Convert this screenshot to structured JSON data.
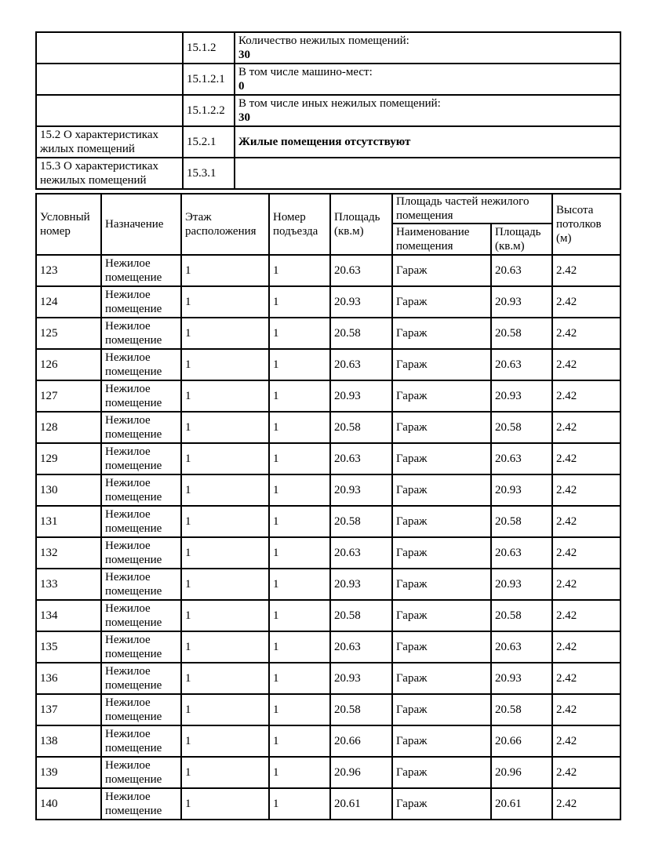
{
  "colors": {
    "background": "#ffffff",
    "border": "#000000",
    "text": "#000000"
  },
  "info_table": {
    "rows": [
      {
        "label": "",
        "code": "15.1.2",
        "text": "Количество нежилых помещений:",
        "value": "30"
      },
      {
        "label": "",
        "code": "15.1.2.1",
        "text": "В том числе машино-мест:",
        "value": "0"
      },
      {
        "label": "",
        "code": "15.1.2.2",
        "text": "В том числе иных нежилых помещений:",
        "value": "30"
      },
      {
        "label": "15.2 О характеристиках жилых помещений",
        "code": "15.2.1",
        "text": "",
        "value": "Жилые помещения отсутствуют"
      },
      {
        "label": "15.3 О характеристиках нежилых помещений",
        "code": "15.3.1",
        "text": "",
        "value": ""
      }
    ]
  },
  "premises_table": {
    "headers": {
      "unit_number": "Условный номер",
      "purpose": "Назначение",
      "floor": "Этаж расположения",
      "entrance": "Номер подъезда",
      "area": "Площадь (кв.м)",
      "parts_group": "Площадь частей нежилого помещения",
      "part_name": "Наименование помещения",
      "part_area": "Площадь (кв.м)",
      "ceiling": "Высота потолков (м)"
    },
    "rows": [
      {
        "number": "123",
        "purpose": "Нежилое помещение",
        "floor": "1",
        "entrance": "1",
        "area": "20.63",
        "part_name": "Гараж",
        "part_area": "20.63",
        "ceiling": "2.42"
      },
      {
        "number": "124",
        "purpose": "Нежилое помещение",
        "floor": "1",
        "entrance": "1",
        "area": "20.93",
        "part_name": "Гараж",
        "part_area": "20.93",
        "ceiling": "2.42"
      },
      {
        "number": "125",
        "purpose": "Нежилое помещение",
        "floor": "1",
        "entrance": "1",
        "area": "20.58",
        "part_name": "Гараж",
        "part_area": "20.58",
        "ceiling": "2.42"
      },
      {
        "number": "126",
        "purpose": "Нежилое помещение",
        "floor": "1",
        "entrance": "1",
        "area": "20.63",
        "part_name": "Гараж",
        "part_area": "20.63",
        "ceiling": "2.42"
      },
      {
        "number": "127",
        "purpose": "Нежилое помещение",
        "floor": "1",
        "entrance": "1",
        "area": "20.93",
        "part_name": "Гараж",
        "part_area": "20.93",
        "ceiling": "2.42"
      },
      {
        "number": "128",
        "purpose": "Нежилое помещение",
        "floor": "1",
        "entrance": "1",
        "area": "20.58",
        "part_name": "Гараж",
        "part_area": "20.58",
        "ceiling": "2.42"
      },
      {
        "number": "129",
        "purpose": "Нежилое помещение",
        "floor": "1",
        "entrance": "1",
        "area": "20.63",
        "part_name": "Гараж",
        "part_area": "20.63",
        "ceiling": "2.42"
      },
      {
        "number": "130",
        "purpose": "Нежилое помещение",
        "floor": "1",
        "entrance": "1",
        "area": "20.93",
        "part_name": "Гараж",
        "part_area": "20.93",
        "ceiling": "2.42"
      },
      {
        "number": "131",
        "purpose": "Нежилое помещение",
        "floor": "1",
        "entrance": "1",
        "area": "20.58",
        "part_name": "Гараж",
        "part_area": "20.58",
        "ceiling": "2.42"
      },
      {
        "number": "132",
        "purpose": "Нежилое помещение",
        "floor": "1",
        "entrance": "1",
        "area": "20.63",
        "part_name": "Гараж",
        "part_area": "20.63",
        "ceiling": "2.42"
      },
      {
        "number": "133",
        "purpose": "Нежилое помещение",
        "floor": "1",
        "entrance": "1",
        "area": "20.93",
        "part_name": "Гараж",
        "part_area": "20.93",
        "ceiling": "2.42"
      },
      {
        "number": "134",
        "purpose": "Нежилое помещение",
        "floor": "1",
        "entrance": "1",
        "area": "20.58",
        "part_name": "Гараж",
        "part_area": "20.58",
        "ceiling": "2.42"
      },
      {
        "number": "135",
        "purpose": "Нежилое помещение",
        "floor": "1",
        "entrance": "1",
        "area": "20.63",
        "part_name": "Гараж",
        "part_area": "20.63",
        "ceiling": "2.42"
      },
      {
        "number": "136",
        "purpose": "Нежилое помещение",
        "floor": "1",
        "entrance": "1",
        "area": "20.93",
        "part_name": "Гараж",
        "part_area": "20.93",
        "ceiling": "2.42"
      },
      {
        "number": "137",
        "purpose": "Нежилое помещение",
        "floor": "1",
        "entrance": "1",
        "area": "20.58",
        "part_name": "Гараж",
        "part_area": "20.58",
        "ceiling": "2.42"
      },
      {
        "number": "138",
        "purpose": "Нежилое помещение",
        "floor": "1",
        "entrance": "1",
        "area": "20.66",
        "part_name": "Гараж",
        "part_area": "20.66",
        "ceiling": "2.42"
      },
      {
        "number": "139",
        "purpose": "Нежилое помещение",
        "floor": "1",
        "entrance": "1",
        "area": "20.96",
        "part_name": "Гараж",
        "part_area": "20.96",
        "ceiling": "2.42"
      },
      {
        "number": "140",
        "purpose": "Нежилое помещение",
        "floor": "1",
        "entrance": "1",
        "area": "20.61",
        "part_name": "Гараж",
        "part_area": "20.61",
        "ceiling": "2.42"
      }
    ]
  }
}
